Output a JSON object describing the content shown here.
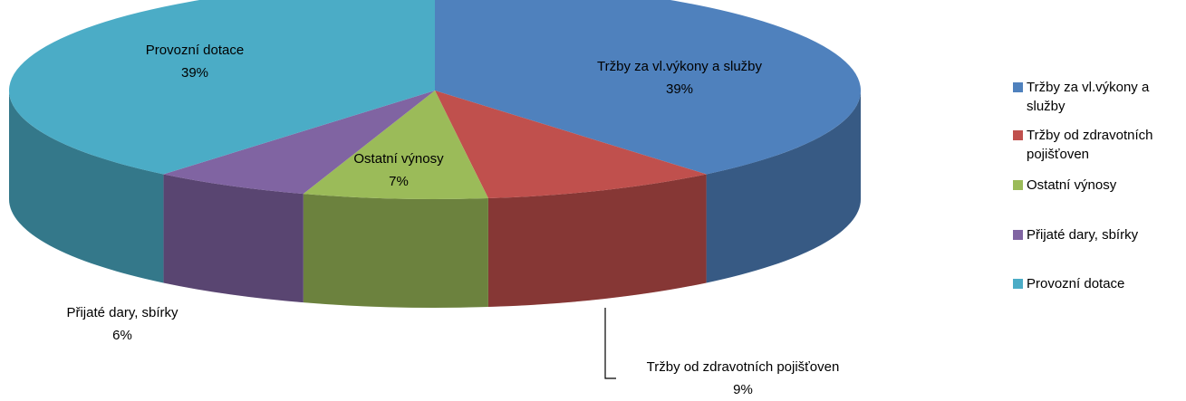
{
  "chart_data": {
    "type": "pie",
    "categories": [
      "Tržby za vl.výkony a služby",
      "Tržby od zdravotních pojišťoven",
      "Ostatní výnosy",
      "Přijaté dary, sbírky",
      "Provozní dotace"
    ],
    "values": [
      39,
      9,
      7,
      6,
      39
    ],
    "value_labels": [
      "39%",
      "9%",
      "7%",
      "6%",
      "39%"
    ],
    "colors": [
      "#4f81bd",
      "#c0504d",
      "#9bbb59",
      "#8064a2",
      "#4bacc6"
    ]
  }
}
